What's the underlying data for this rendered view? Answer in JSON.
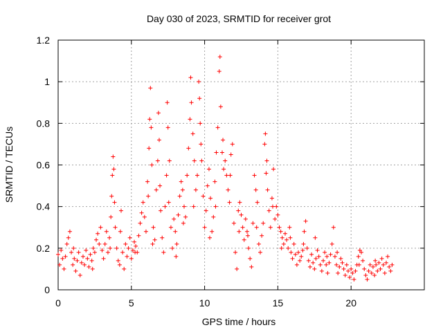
{
  "chart_data": {
    "type": "scatter",
    "title": "Day 030 of 2023, SRMTID for receiver grot",
    "xlabel": "GPS time / hours",
    "ylabel": "SRMTID / TECUs",
    "xlim": [
      0,
      25
    ],
    "ylim": [
      0,
      1.2
    ],
    "grid": true,
    "marker": "+",
    "color": "#ff0000",
    "xticks": [
      0,
      5,
      10,
      15,
      20
    ],
    "xtick_labels": [
      "0",
      "5",
      "10",
      "15",
      "20"
    ],
    "yticks": [
      0,
      0.2,
      0.4,
      0.6,
      0.8,
      1.0,
      1.2
    ],
    "ytick_labels": [
      "0",
      "0.2",
      "0.4",
      "0.6",
      "0.8",
      "1",
      "1.2"
    ],
    "series": [
      {
        "name": "SRMTID",
        "points": [
          [
            0.0,
            0.17
          ],
          [
            0.1,
            0.12
          ],
          [
            0.2,
            0.19
          ],
          [
            0.3,
            0.15
          ],
          [
            0.4,
            0.1
          ],
          [
            0.5,
            0.16
          ],
          [
            0.6,
            0.22
          ],
          [
            0.7,
            0.25
          ],
          [
            0.8,
            0.28
          ],
          [
            0.9,
            0.18
          ],
          [
            1.0,
            0.12
          ],
          [
            1.1,
            0.15
          ],
          [
            1.2,
            0.09
          ],
          [
            1.3,
            0.14
          ],
          [
            1.4,
            0.18
          ],
          [
            1.5,
            0.07
          ],
          [
            1.6,
            0.13
          ],
          [
            1.7,
            0.16
          ],
          [
            1.8,
            0.12
          ],
          [
            1.9,
            0.19
          ],
          [
            2.0,
            0.15
          ],
          [
            2.1,
            0.11
          ],
          [
            2.2,
            0.17
          ],
          [
            2.3,
            0.14
          ],
          [
            2.4,
            0.2
          ],
          [
            2.5,
            0.18
          ],
          [
            2.6,
            0.24
          ],
          [
            2.7,
            0.27
          ],
          [
            2.8,
            0.22
          ],
          [
            2.9,
            0.3
          ],
          [
            3.0,
            0.19
          ],
          [
            3.1,
            0.15
          ],
          [
            3.2,
            0.22
          ],
          [
            3.3,
            0.28
          ],
          [
            3.4,
            0.18
          ],
          [
            3.5,
            0.25
          ],
          [
            3.6,
            0.35
          ],
          [
            3.65,
            0.45
          ],
          [
            3.7,
            0.55
          ],
          [
            3.75,
            0.64
          ],
          [
            3.8,
            0.58
          ],
          [
            3.85,
            0.42
          ],
          [
            3.9,
            0.3
          ],
          [
            4.0,
            0.2
          ],
          [
            4.1,
            0.14
          ],
          [
            4.2,
            0.12
          ],
          [
            4.3,
            0.38
          ],
          [
            4.4,
            0.18
          ],
          [
            4.5,
            0.1
          ],
          [
            4.6,
            0.22
          ],
          [
            4.7,
            0.16
          ],
          [
            4.8,
            0.2
          ],
          [
            4.9,
            0.25
          ],
          [
            5.0,
            0.15
          ],
          [
            5.1,
            0.19
          ],
          [
            5.2,
            0.23
          ],
          [
            5.3,
            0.21
          ],
          [
            5.4,
            0.18
          ],
          [
            5.5,
            0.26
          ],
          [
            5.6,
            0.32
          ],
          [
            5.7,
            0.37
          ],
          [
            5.8,
            0.42
          ],
          [
            5.9,
            0.35
          ],
          [
            6.0,
            0.28
          ],
          [
            6.1,
            0.52
          ],
          [
            6.2,
            0.68
          ],
          [
            6.25,
            0.82
          ],
          [
            6.3,
            0.97
          ],
          [
            6.35,
            0.78
          ],
          [
            6.4,
            0.6
          ],
          [
            6.5,
            0.3
          ],
          [
            6.6,
            0.24
          ],
          [
            6.7,
            0.48
          ],
          [
            6.8,
            0.62
          ],
          [
            6.85,
            0.85
          ],
          [
            6.9,
            0.72
          ],
          [
            7.0,
            0.38
          ],
          [
            7.1,
            0.25
          ],
          [
            7.2,
            0.18
          ],
          [
            7.3,
            0.4
          ],
          [
            7.4,
            0.55
          ],
          [
            7.45,
            0.9
          ],
          [
            7.5,
            0.78
          ],
          [
            7.6,
            0.62
          ],
          [
            7.7,
            0.3
          ],
          [
            7.8,
            0.2
          ],
          [
            7.9,
            0.34
          ],
          [
            8.0,
            0.28
          ],
          [
            8.1,
            0.22
          ],
          [
            8.2,
            0.36
          ],
          [
            8.3,
            0.45
          ],
          [
            8.4,
            0.52
          ],
          [
            8.5,
            0.48
          ],
          [
            8.6,
            0.4
          ],
          [
            8.7,
            0.35
          ],
          [
            8.8,
            0.55
          ],
          [
            8.9,
            0.68
          ],
          [
            9.0,
            0.82
          ],
          [
            9.05,
            1.02
          ],
          [
            9.1,
            0.9
          ],
          [
            9.2,
            0.75
          ],
          [
            9.3,
            0.62
          ],
          [
            9.4,
            0.48
          ],
          [
            9.5,
            0.55
          ],
          [
            9.6,
            1.0
          ],
          [
            9.65,
            0.92
          ],
          [
            9.7,
            0.8
          ],
          [
            9.8,
            0.62
          ],
          [
            9.9,
            0.45
          ],
          [
            10.0,
            0.3
          ],
          [
            10.1,
            0.38
          ],
          [
            10.2,
            0.5
          ],
          [
            10.3,
            0.58
          ],
          [
            10.4,
            0.44
          ],
          [
            10.5,
            0.28
          ],
          [
            10.6,
            0.35
          ],
          [
            10.7,
            0.52
          ],
          [
            10.8,
            0.66
          ],
          [
            10.9,
            0.78
          ],
          [
            11.0,
            1.05
          ],
          [
            11.05,
            1.12
          ],
          [
            11.1,
            0.88
          ],
          [
            11.2,
            0.66
          ],
          [
            11.3,
            0.58
          ],
          [
            11.4,
            0.62
          ],
          [
            11.5,
            0.55
          ],
          [
            11.6,
            0.48
          ],
          [
            11.7,
            0.42
          ],
          [
            11.8,
            0.65
          ],
          [
            11.9,
            0.7
          ],
          [
            12.0,
            0.32
          ],
          [
            12.1,
            0.18
          ],
          [
            12.2,
            0.1
          ],
          [
            12.3,
            0.38
          ],
          [
            12.4,
            0.42
          ],
          [
            12.5,
            0.36
          ],
          [
            12.6,
            0.3
          ],
          [
            12.7,
            0.24
          ],
          [
            12.8,
            0.34
          ],
          [
            12.9,
            0.28
          ],
          [
            13.0,
            0.2
          ],
          [
            13.1,
            0.15
          ],
          [
            13.2,
            0.11
          ],
          [
            13.3,
            0.32
          ],
          [
            13.4,
            0.55
          ],
          [
            13.5,
            0.48
          ],
          [
            13.6,
            0.42
          ],
          [
            13.7,
            0.22
          ],
          [
            13.8,
            0.18
          ],
          [
            13.9,
            0.26
          ],
          [
            14.0,
            0.32
          ],
          [
            14.1,
            0.7
          ],
          [
            14.15,
            0.75
          ],
          [
            14.2,
            0.56
          ],
          [
            14.3,
            0.48
          ],
          [
            14.4,
            0.38
          ],
          [
            14.5,
            0.3
          ],
          [
            14.6,
            0.44
          ],
          [
            14.7,
            0.58
          ],
          [
            14.8,
            0.34
          ],
          [
            14.9,
            0.4
          ],
          [
            15.0,
            0.36
          ],
          [
            15.1,
            0.3
          ],
          [
            15.2,
            0.28
          ],
          [
            15.3,
            0.25
          ],
          [
            15.4,
            0.22
          ],
          [
            15.5,
            0.27
          ],
          [
            15.6,
            0.24
          ],
          [
            15.7,
            0.2
          ],
          [
            15.8,
            0.3
          ],
          [
            15.9,
            0.18
          ],
          [
            16.0,
            0.15
          ],
          [
            16.1,
            0.22
          ],
          [
            16.2,
            0.17
          ],
          [
            16.3,
            0.12
          ],
          [
            16.4,
            0.18
          ],
          [
            16.5,
            0.14
          ],
          [
            16.6,
            0.16
          ],
          [
            16.7,
            0.19
          ],
          [
            16.8,
            0.28
          ],
          [
            16.9,
            0.33
          ],
          [
            17.0,
            0.2
          ],
          [
            17.1,
            0.14
          ],
          [
            17.2,
            0.11
          ],
          [
            17.3,
            0.17
          ],
          [
            17.4,
            0.13
          ],
          [
            17.5,
            0.1
          ],
          [
            17.6,
            0.15
          ],
          [
            17.7,
            0.19
          ],
          [
            17.8,
            0.16
          ],
          [
            17.9,
            0.12
          ],
          [
            18.0,
            0.09
          ],
          [
            18.1,
            0.14
          ],
          [
            18.2,
            0.18
          ],
          [
            18.3,
            0.12
          ],
          [
            18.4,
            0.08
          ],
          [
            18.5,
            0.13
          ],
          [
            18.6,
            0.17
          ],
          [
            18.7,
            0.22
          ],
          [
            18.8,
            0.3
          ],
          [
            18.9,
            0.16
          ],
          [
            19.0,
            0.12
          ],
          [
            19.1,
            0.08
          ],
          [
            19.2,
            0.11
          ],
          [
            19.3,
            0.15
          ],
          [
            19.4,
            0.13
          ],
          [
            19.5,
            0.1
          ],
          [
            19.6,
            0.07
          ],
          [
            19.7,
            0.12
          ],
          [
            19.8,
            0.09
          ],
          [
            19.9,
            0.06
          ],
          [
            20.0,
            0.1
          ],
          [
            20.1,
            0.08
          ],
          [
            20.2,
            0.05
          ],
          [
            20.3,
            0.09
          ],
          [
            20.4,
            0.12
          ],
          [
            20.5,
            0.16
          ],
          [
            20.6,
            0.19
          ],
          [
            20.7,
            0.18
          ],
          [
            20.8,
            0.14
          ],
          [
            20.9,
            0.1
          ],
          [
            21.0,
            0.07
          ],
          [
            21.1,
            0.05
          ],
          [
            21.2,
            0.09
          ],
          [
            21.3,
            0.12
          ],
          [
            21.4,
            0.08
          ],
          [
            21.5,
            0.11
          ],
          [
            21.6,
            0.07
          ],
          [
            21.7,
            0.12
          ],
          [
            21.8,
            0.09
          ],
          [
            21.9,
            0.13
          ],
          [
            22.0,
            0.1
          ],
          [
            22.1,
            0.15
          ],
          [
            22.2,
            0.12
          ],
          [
            22.3,
            0.08
          ],
          [
            22.4,
            0.13
          ],
          [
            22.5,
            0.16
          ],
          [
            22.6,
            0.11
          ],
          [
            22.7,
            0.09
          ],
          [
            22.8,
            0.12
          ],
          [
            1.05,
            0.2
          ],
          [
            2.35,
            0.1
          ],
          [
            3.55,
            0.2
          ],
          [
            4.25,
            0.28
          ],
          [
            5.25,
            0.18
          ],
          [
            6.15,
            0.45
          ],
          [
            6.45,
            0.22
          ],
          [
            6.95,
            0.5
          ],
          [
            7.55,
            0.42
          ],
          [
            8.05,
            0.16
          ],
          [
            8.55,
            0.32
          ],
          [
            9.25,
            0.4
          ],
          [
            9.75,
            0.7
          ],
          [
            10.35,
            0.25
          ],
          [
            10.75,
            0.4
          ],
          [
            11.25,
            0.72
          ],
          [
            11.75,
            0.55
          ],
          [
            12.35,
            0.28
          ],
          [
            12.95,
            0.26
          ],
          [
            13.55,
            0.3
          ],
          [
            14.25,
            0.62
          ],
          [
            14.65,
            0.4
          ],
          [
            15.25,
            0.2
          ],
          [
            15.85,
            0.25
          ],
          [
            16.75,
            0.22
          ],
          [
            17.55,
            0.25
          ],
          [
            18.35,
            0.16
          ],
          [
            19.05,
            0.18
          ],
          [
            20.55,
            0.12
          ],
          [
            21.65,
            0.14
          ]
        ]
      }
    ]
  }
}
